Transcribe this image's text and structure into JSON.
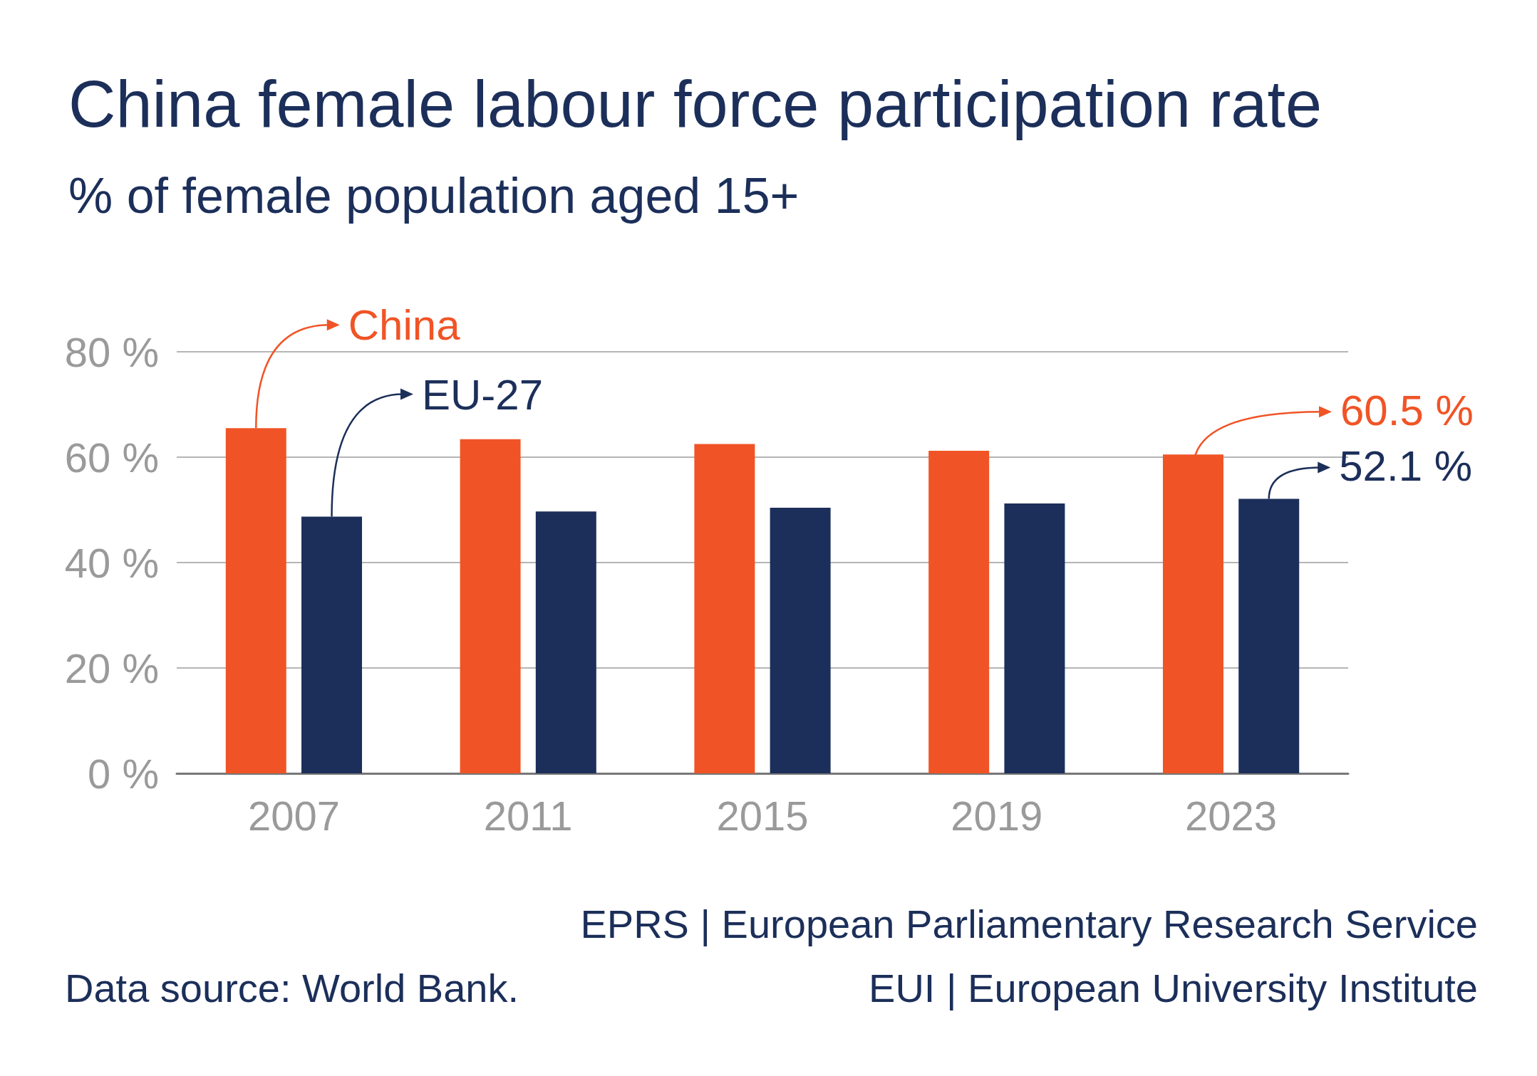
{
  "chart_data": {
    "type": "bar",
    "title": "China female labour force participation rate",
    "subtitle": "% of female population aged 15+",
    "categories": [
      "2007",
      "2011",
      "2015",
      "2019",
      "2023"
    ],
    "series": [
      {
        "name": "China",
        "color": "#f05426",
        "values": [
          65.5,
          63.4,
          62.5,
          61.2,
          60.5
        ],
        "value_labels": [
          null,
          null,
          null,
          null,
          "60.5 %"
        ]
      },
      {
        "name": "EU-27",
        "color": "#1c2f5a",
        "values": [
          48.7,
          49.7,
          50.4,
          51.2,
          52.1
        ],
        "value_labels": [
          null,
          null,
          null,
          null,
          "52.1 %"
        ]
      }
    ],
    "ylim": [
      0,
      80
    ],
    "yticks": [
      {
        "value": 0,
        "label": "0 %"
      },
      {
        "value": 20,
        "label": "20 %"
      },
      {
        "value": 40,
        "label": "40 %"
      },
      {
        "value": 60,
        "label": "60 %"
      },
      {
        "value": 80,
        "label": "80 %"
      }
    ],
    "grid": "y",
    "legend": "top left",
    "annotations": [
      "EPRS | European Parliamentary Research Service",
      "EUI | European University Institute",
      "Data source: World Bank."
    ]
  }
}
